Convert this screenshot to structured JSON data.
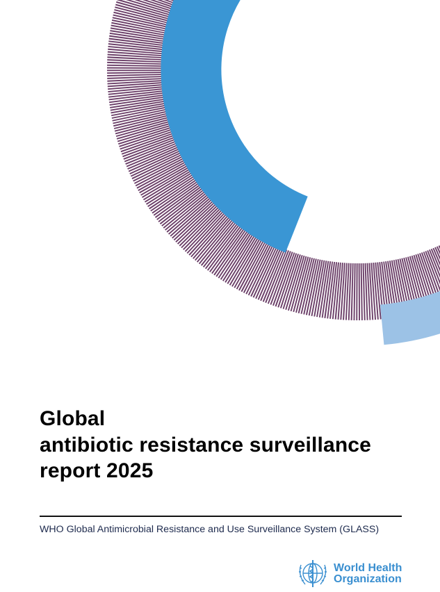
{
  "cover": {
    "title_lines": [
      "Global",
      "antibiotic resistance surveillance",
      "report 2025"
    ],
    "subtitle": "WHO Global Antimicrobial Resistance and Use Surveillance System (GLASS)"
  },
  "logo": {
    "icon": "who-emblem-icon",
    "lines": [
      "World Health",
      "Organization"
    ]
  },
  "colors": {
    "hatch": "#6b3f68",
    "blue": "#3a96d4",
    "light_blue": "#9cc2e6",
    "logo": "#3a8fd0"
  }
}
